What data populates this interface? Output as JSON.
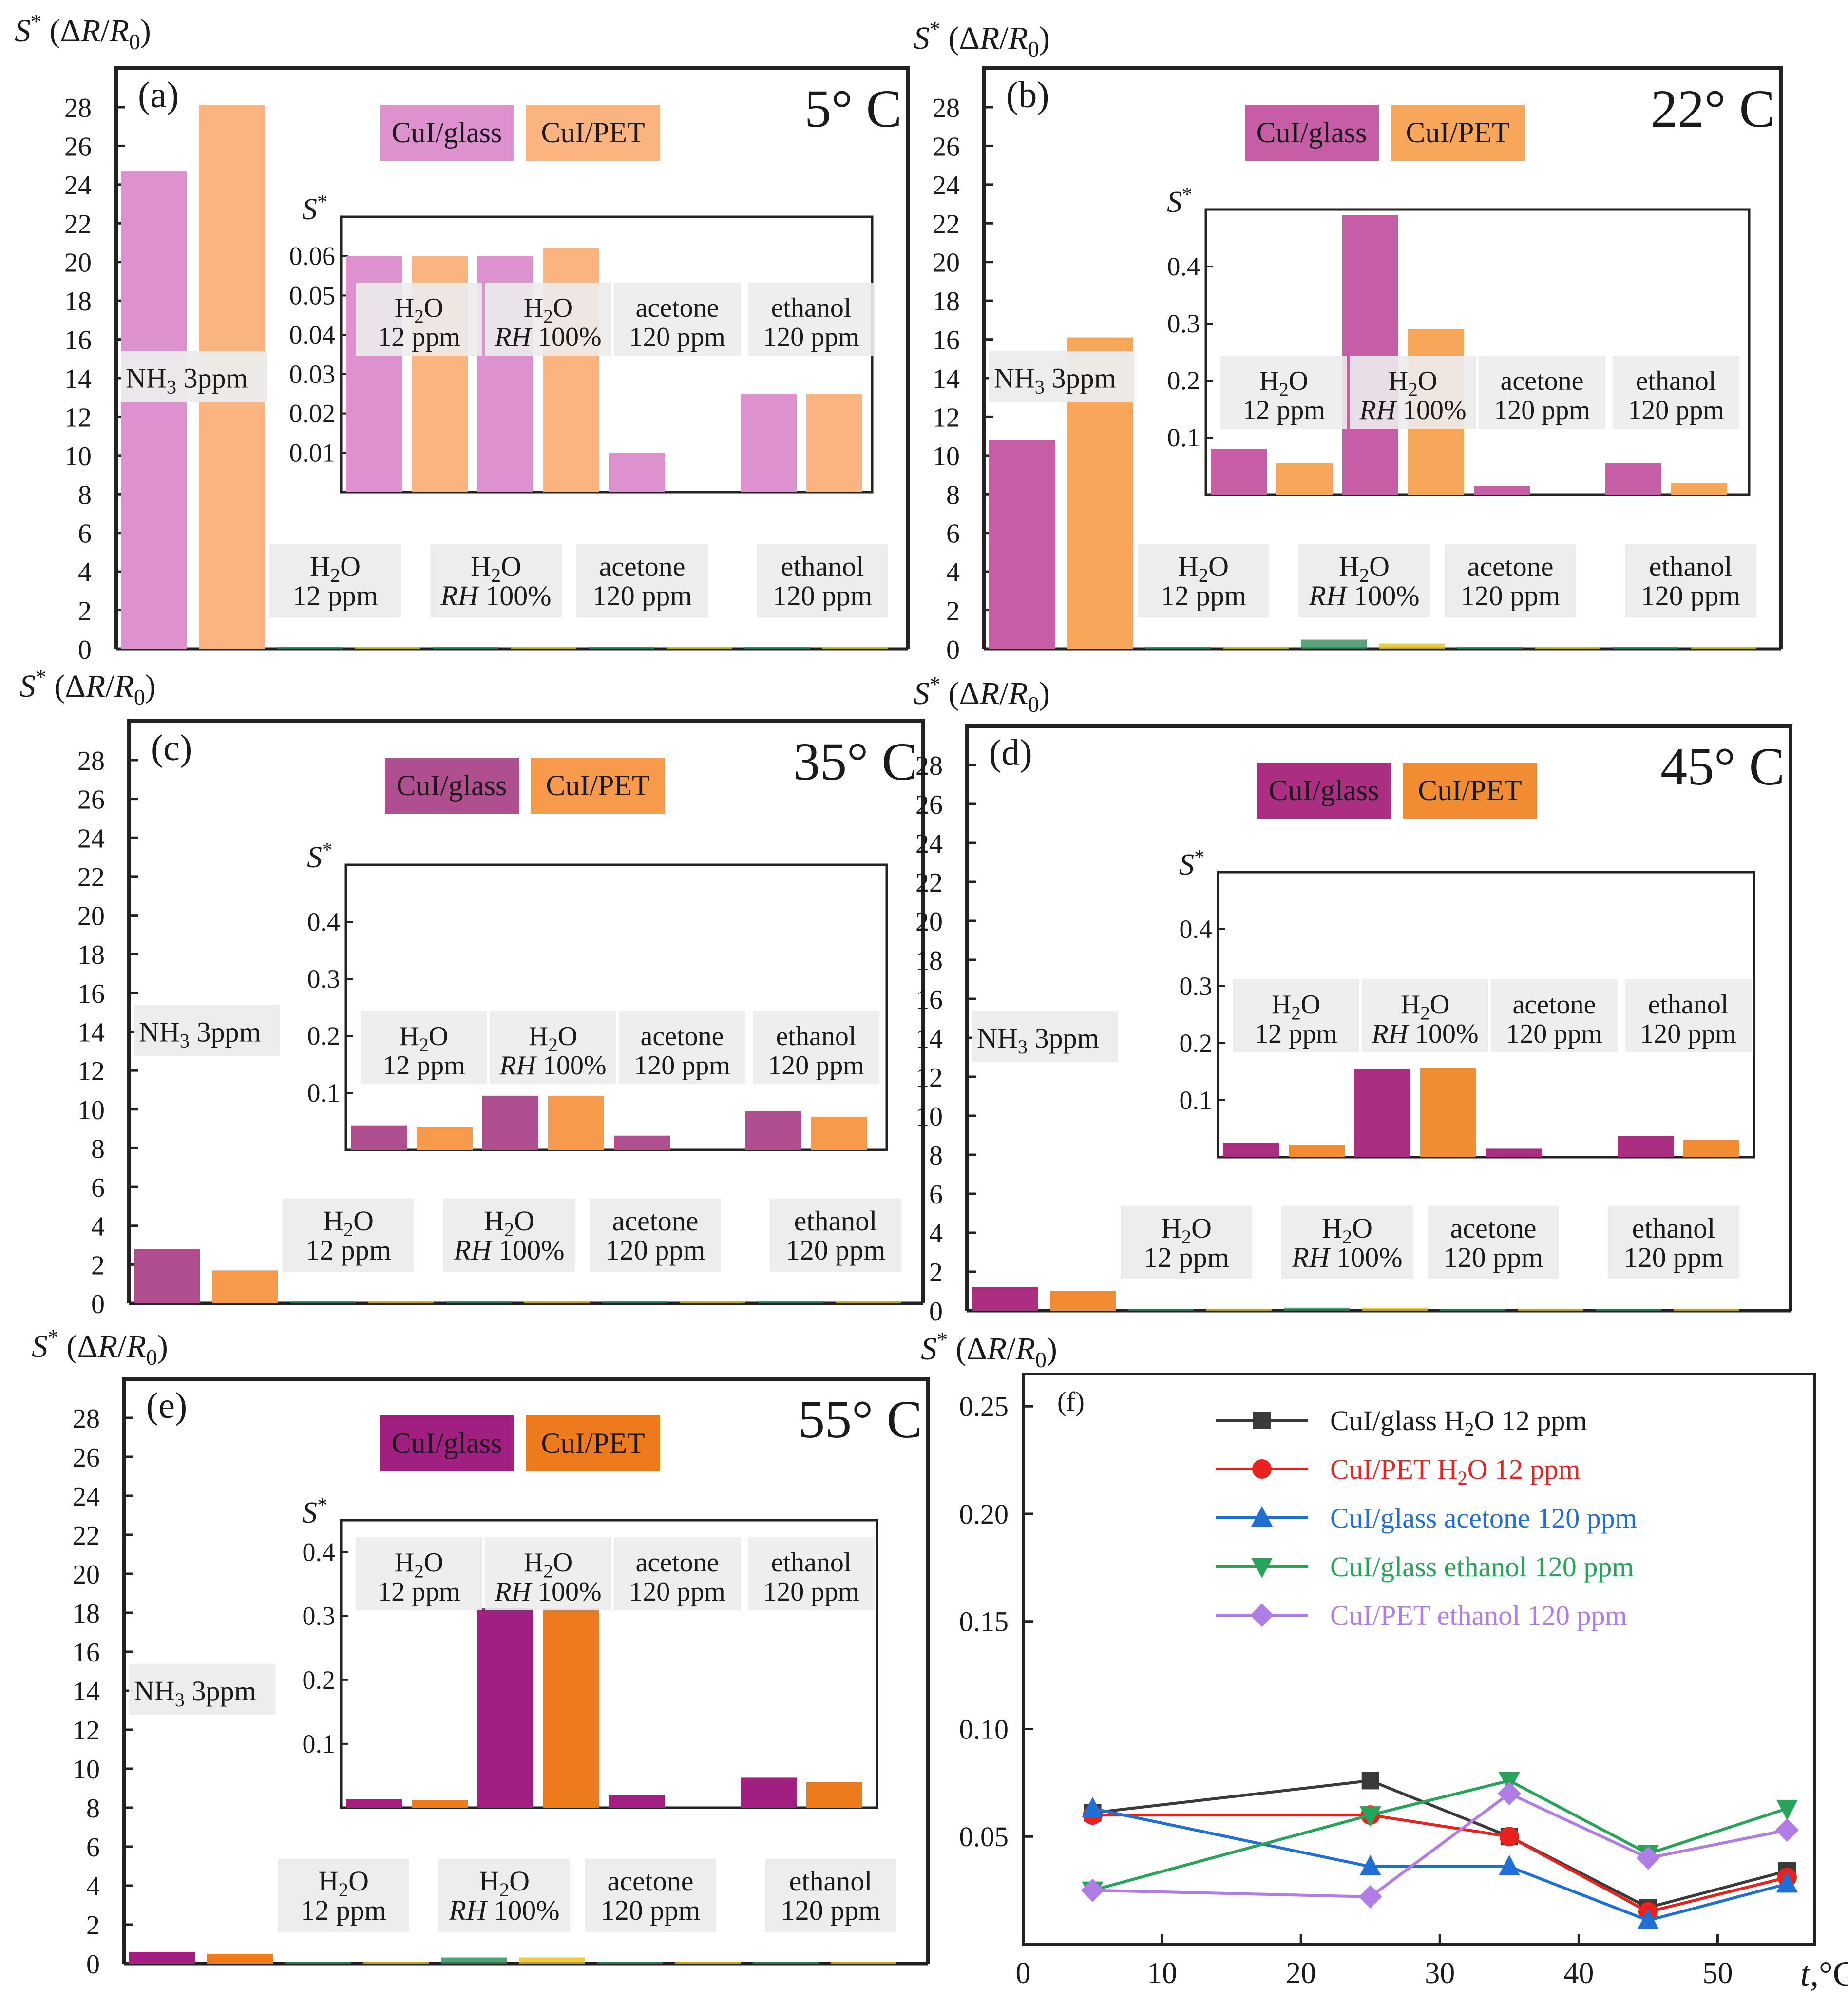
{
  "figure": {
    "ylabel_prefix": "S",
    "ylabel_star": "*",
    "ylabel_body": " (ΔR/R",
    "ylabel_sub": "0",
    "ylabel_close": ")",
    "inset_ylabel": "S",
    "inset_ylabel_star": "*"
  },
  "legend": {
    "glass_label": "CuI/glass",
    "pet_label": "CuI/PET"
  },
  "labels": {
    "nh3": "NH",
    "nh3_sub": "3",
    "nh3_rest": " 3ppm",
    "h2o_a": "H",
    "h2o_sub": "2",
    "h2o_b": "O",
    "ppm12": "12 ppm",
    "rh_prefix": "RH",
    "rh_rest": " 100%",
    "acetone": "acetone",
    "ethanol": "ethanol",
    "ppm120": "120 ppm"
  },
  "chart_data": [
    {
      "panel": "(a)",
      "type": "bar",
      "temperature": "5°C",
      "colors": {
        "glass": "#dd92cf",
        "pet": "#fbb47f"
      },
      "ylim": [
        0,
        28
      ],
      "yticks": [
        0,
        2,
        4,
        6,
        8,
        10,
        12,
        14,
        16,
        18,
        20,
        22,
        24,
        26,
        28
      ],
      "categories": [
        "NH3 3ppm",
        "H2O 12 ppm",
        "H2O RH 100%",
        "acetone 120 ppm",
        "ethanol 120 ppm"
      ],
      "series": [
        {
          "name": "CuI/glass",
          "values": [
            24.7,
            0.06,
            0.06,
            0.01,
            0.025
          ]
        },
        {
          "name": "CuI/PET",
          "values": [
            28.1,
            0.06,
            0.062,
            0,
            0.025
          ]
        }
      ],
      "inset": {
        "ylim": [
          0,
          0.07
        ],
        "yticks": [
          0.01,
          0.02,
          0.03,
          0.04,
          0.05,
          0.06
        ],
        "yticklabels": [
          "0.01",
          "0.02",
          "0.03",
          "0.04",
          "0.05",
          "0.06"
        ],
        "categories": [
          "H2O 12 ppm",
          "H2O RH 100%",
          "acetone 120 ppm",
          "ethanol 120 ppm"
        ],
        "series": [
          {
            "name": "CuI/glass",
            "values": [
              0.06,
              0.06,
              0.01,
              0.025
            ]
          },
          {
            "name": "CuI/PET",
            "values": [
              0.06,
              0.062,
              0,
              0.025
            ]
          }
        ]
      }
    },
    {
      "panel": "(b)",
      "type": "bar",
      "temperature": "22°C",
      "colors": {
        "glass": "#c75da6",
        "pet": "#f8a65a"
      },
      "ylim": [
        0,
        28
      ],
      "yticks": [
        0,
        2,
        4,
        6,
        8,
        10,
        12,
        14,
        16,
        18,
        20,
        22,
        24,
        26,
        28
      ],
      "categories": [
        "NH3 3ppm",
        "H2O 12 ppm",
        "H2O RH 100%",
        "acetone 120 ppm",
        "ethanol 120 ppm"
      ],
      "series": [
        {
          "name": "CuI/glass",
          "values": [
            10.8,
            0.08,
            0.49,
            0.015,
            0.055
          ]
        },
        {
          "name": "CuI/PET",
          "values": [
            16.1,
            0.055,
            0.29,
            0,
            0.02
          ]
        }
      ],
      "inset": {
        "ylim": [
          0,
          0.5
        ],
        "yticks": [
          0.1,
          0.2,
          0.3,
          0.4
        ],
        "yticklabels": [
          "0.1",
          "0.2",
          "0.3",
          "0.4"
        ],
        "categories": [
          "H2O 12 ppm",
          "H2O RH 100%",
          "acetone 120 ppm",
          "ethanol 120 ppm"
        ],
        "series": [
          {
            "name": "CuI/glass",
            "values": [
              0.08,
              0.49,
              0.015,
              0.055
            ]
          },
          {
            "name": "CuI/PET",
            "values": [
              0.055,
              0.29,
              0,
              0.02
            ]
          }
        ]
      }
    },
    {
      "panel": "(c)",
      "type": "bar",
      "temperature": "35°C",
      "colors": {
        "glass": "#b04f90",
        "pet": "#f79a4b"
      },
      "ylim": [
        0,
        28
      ],
      "yticks": [
        0,
        2,
        4,
        6,
        8,
        10,
        12,
        14,
        16,
        18,
        20,
        22,
        24,
        26,
        28
      ],
      "categories": [
        "NH3 3ppm",
        "H2O 12 ppm",
        "H2O RH 100%",
        "acetone 120 ppm",
        "ethanol 120 ppm"
      ],
      "series": [
        {
          "name": "CuI/glass",
          "values": [
            2.8,
            0.043,
            0.095,
            0.025,
            0.068
          ]
        },
        {
          "name": "CuI/PET",
          "values": [
            1.7,
            0.04,
            0.095,
            0,
            0.058
          ]
        }
      ],
      "inset": {
        "ylim": [
          0,
          0.5
        ],
        "yticks": [
          0.1,
          0.2,
          0.3,
          0.4
        ],
        "yticklabels": [
          "0.1",
          "0.2",
          "0.3",
          "0.4"
        ],
        "categories": [
          "H2O 12 ppm",
          "H2O RH 100%",
          "acetone 120 ppm",
          "ethanol 120 ppm"
        ],
        "series": [
          {
            "name": "CuI/glass",
            "values": [
              0.043,
              0.095,
              0.025,
              0.068
            ]
          },
          {
            "name": "CuI/PET",
            "values": [
              0.04,
              0.095,
              0,
              0.058
            ]
          }
        ]
      }
    },
    {
      "panel": "(d)",
      "type": "bar",
      "temperature": "45°C",
      "colors": {
        "glass": "#ac2e83",
        "pet": "#f28c32"
      },
      "ylim": [
        0,
        28
      ],
      "yticks": [
        0,
        2,
        4,
        6,
        8,
        10,
        12,
        14,
        16,
        18,
        20,
        22,
        24,
        26,
        28
      ],
      "categories": [
        "NH3 3ppm",
        "H2O 12 ppm",
        "H2O RH 100%",
        "acetone 120 ppm",
        "ethanol 120 ppm"
      ],
      "series": [
        {
          "name": "CuI/glass",
          "values": [
            1.2,
            0.025,
            0.155,
            0.015,
            0.037
          ]
        },
        {
          "name": "CuI/PET",
          "values": [
            1.0,
            0.022,
            0.157,
            0,
            0.03
          ]
        }
      ],
      "inset": {
        "ylim": [
          0,
          0.5
        ],
        "yticks": [
          0.1,
          0.2,
          0.3,
          0.4
        ],
        "yticklabels": [
          "0.1",
          "0.2",
          "0.3",
          "0.4"
        ],
        "categories": [
          "H2O 12 ppm",
          "H2O RH 100%",
          "acetone 120 ppm",
          "ethanol 120 ppm"
        ],
        "series": [
          {
            "name": "CuI/glass",
            "values": [
              0.025,
              0.155,
              0.015,
              0.037
            ]
          },
          {
            "name": "CuI/PET",
            "values": [
              0.022,
              0.157,
              0,
              0.03
            ]
          }
        ]
      }
    },
    {
      "panel": "(e)",
      "type": "bar",
      "temperature": "55°C",
      "colors": {
        "glass": "#a01f80",
        "pet": "#ee7a1e"
      },
      "ylim": [
        0,
        28
      ],
      "yticks": [
        0,
        2,
        4,
        6,
        8,
        10,
        12,
        14,
        16,
        18,
        20,
        22,
        24,
        26,
        28
      ],
      "categories": [
        "NH3 3ppm",
        "H2O 12 ppm",
        "H2O RH 100%",
        "acetone 120 ppm",
        "ethanol 120 ppm"
      ],
      "series": [
        {
          "name": "CuI/glass",
          "values": [
            0.6,
            0.013,
            0.312,
            0.02,
            0.047
          ]
        },
        {
          "name": "CuI/PET",
          "values": [
            0.5,
            0.012,
            0.312,
            0,
            0.04
          ]
        }
      ],
      "inset": {
        "ylim": [
          0,
          0.45
        ],
        "yticks": [
          0.1,
          0.2,
          0.3,
          0.4
        ],
        "yticklabels": [
          "0.1",
          "0.2",
          "0.3",
          "0.4"
        ],
        "categories": [
          "H2O 12 ppm",
          "H2O RH 100%",
          "acetone 120 ppm",
          "ethanol 120 ppm"
        ],
        "series": [
          {
            "name": "CuI/glass",
            "values": [
              0.013,
              0.312,
              0.02,
              0.047
            ]
          },
          {
            "name": "CuI/PET",
            "values": [
              0.012,
              0.312,
              0,
              0.04
            ]
          }
        ]
      }
    },
    {
      "panel": "(f)",
      "type": "line",
      "xlabel_italic": "t",
      "xlabel_rest": ",°C",
      "xlim": [
        0,
        57
      ],
      "xticks": [
        0,
        10,
        20,
        30,
        40,
        50
      ],
      "ylim": [
        0,
        0.265
      ],
      "yticks": [
        0.05,
        0.1,
        0.15,
        0.2,
        0.25
      ],
      "yticklabels": [
        "0.05",
        "0.10",
        "0.15",
        "0.20",
        "0.25"
      ],
      "x": [
        5,
        25,
        35,
        45,
        55
      ],
      "series": [
        {
          "name": "CuI/glass H2O 12 ppm",
          "legend_parts": [
            "CuI/glass ",
            "H",
            "2",
            "O 12 ppm"
          ],
          "color": "#3a3a3a",
          "marker": "square",
          "values": [
            0.061,
            0.076,
            0.05,
            0.017,
            0.034
          ]
        },
        {
          "name": "CuI/PET H2O 12 ppm",
          "legend_parts": [
            "CuI/PET  ",
            "H",
            "2",
            "O 12 ppm"
          ],
          "color": "#e8231f",
          "marker": "circle",
          "values": [
            0.06,
            0.06,
            0.05,
            0.015,
            0.031
          ]
        },
        {
          "name": "CuI/glass acetone 120 ppm",
          "legend_parts": [
            "CuI/glass  acetone 120 ppm"
          ],
          "color": "#1f6fd6",
          "marker": "triangle-up",
          "values": [
            0.063,
            0.036,
            0.036,
            0.011,
            0.028
          ]
        },
        {
          "name": "CuI/glass ethanol 120 ppm",
          "legend_parts": [
            "CuI/glass ethanol  120 ppm"
          ],
          "color": "#27a35a",
          "marker": "triangle-down",
          "values": [
            0.025,
            0.06,
            0.076,
            0.042,
            0.063
          ]
        },
        {
          "name": "CuI/PET ethanol 120 ppm",
          "legend_parts": [
            "CuI/PET  ethanol  120 ppm"
          ],
          "color": "#b07ce6",
          "marker": "diamond",
          "values": [
            0.025,
            0.022,
            0.07,
            0.04,
            0.053
          ]
        }
      ]
    }
  ]
}
